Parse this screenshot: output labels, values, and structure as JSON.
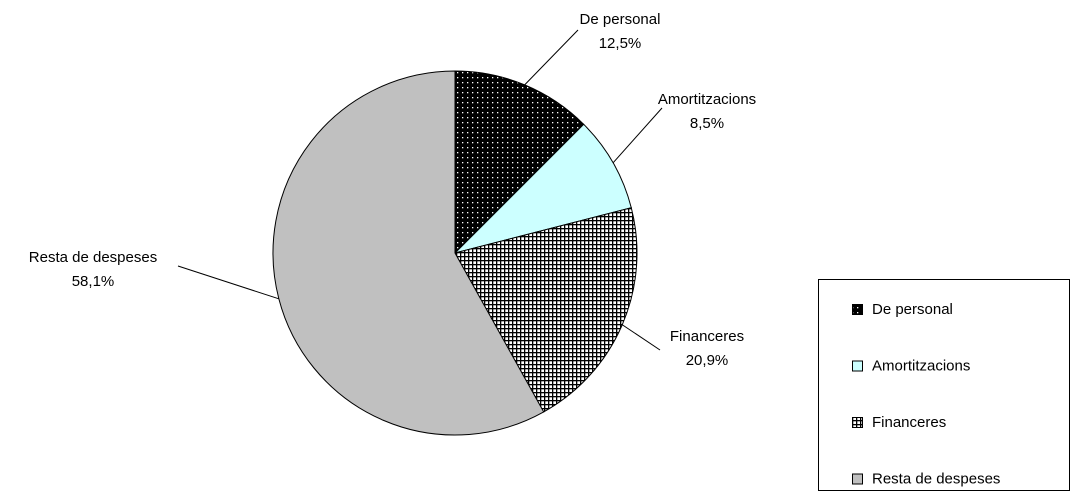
{
  "chart_data": {
    "type": "pie",
    "categories": [
      "De personal",
      "Amortitzacions",
      "Financeres",
      "Resta de despeses"
    ],
    "values": [
      12.5,
      8.5,
      20.9,
      58.1
    ],
    "value_labels": [
      "12,5%",
      "8,5%",
      "20,9%",
      "58,1%"
    ],
    "colors": [
      "#000000",
      "#ccffff",
      "#ffffff",
      "#c0c0c0"
    ],
    "legend": "right"
  }
}
